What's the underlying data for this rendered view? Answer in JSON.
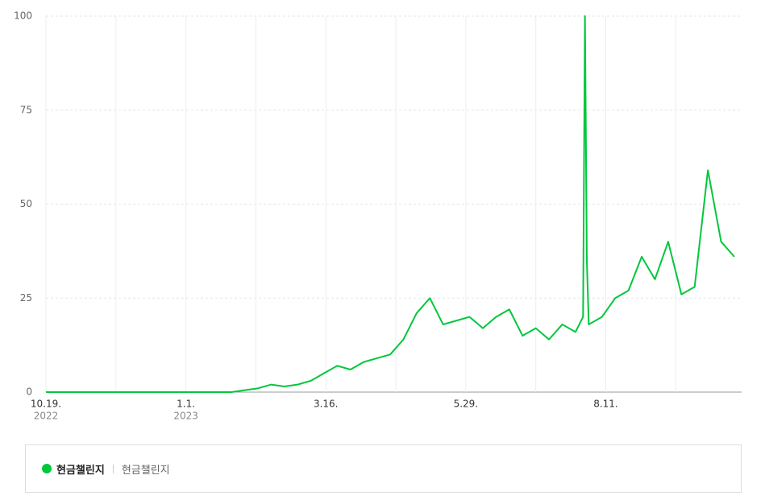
{
  "chart_data": {
    "type": "line",
    "x": [
      "2022-10-19",
      "2022-10-26",
      "2022-11-02",
      "2022-11-09",
      "2022-11-16",
      "2022-11-23",
      "2022-11-30",
      "2022-12-07",
      "2022-12-14",
      "2022-12-21",
      "2022-12-28",
      "2023-01-04",
      "2023-01-11",
      "2023-01-18",
      "2023-01-25",
      "2023-02-01",
      "2023-02-08",
      "2023-02-15",
      "2023-02-22",
      "2023-03-01",
      "2023-03-08",
      "2023-03-15",
      "2023-03-22",
      "2023-03-29",
      "2023-04-05",
      "2023-04-12",
      "2023-04-19",
      "2023-04-26",
      "2023-05-03",
      "2023-05-10",
      "2023-05-17",
      "2023-05-24",
      "2023-05-31",
      "2023-06-07",
      "2023-06-14",
      "2023-06-21",
      "2023-06-28",
      "2023-07-05",
      "2023-07-12",
      "2023-07-19",
      "2023-07-26",
      "2023-07-30",
      "2023-07-31",
      "2023-08-01",
      "2023-08-02",
      "2023-08-09",
      "2023-08-16",
      "2023-08-23",
      "2023-08-30",
      "2023-09-06",
      "2023-09-13",
      "2023-09-20",
      "2023-09-27",
      "2023-10-04",
      "2023-10-11",
      "2023-10-18"
    ],
    "series": [
      {
        "name": "현금챌린지",
        "color": "#00c73c",
        "values": [
          0,
          0,
          0,
          0,
          0,
          0,
          0,
          0,
          0,
          0,
          0,
          0,
          0,
          0,
          0,
          0.5,
          1,
          2,
          1.5,
          2,
          3,
          5,
          7,
          6,
          8,
          9,
          10,
          14,
          21,
          25,
          18,
          19,
          20,
          17,
          20,
          22,
          15,
          17,
          14,
          18,
          16,
          20,
          100,
          35,
          18,
          20,
          25,
          27,
          36,
          30,
          40,
          26,
          28,
          59,
          40,
          36
        ]
      }
    ],
    "legend_keyword": "현금챌린지",
    "xlim": [
      "2022-10-19",
      "2023-10-18"
    ],
    "xticks": [
      {
        "value": "2022-10-19",
        "label": "10.19.",
        "year": "2022"
      },
      {
        "value": "2022-11-25",
        "label": null
      },
      {
        "value": "2023-01-01",
        "label": "1.1.",
        "year": "2023"
      },
      {
        "value": "2023-02-07",
        "label": null
      },
      {
        "value": "2023-03-16",
        "label": "3.16."
      },
      {
        "value": "2023-04-22",
        "label": null
      },
      {
        "value": "2023-05-29",
        "label": "5.29."
      },
      {
        "value": "2023-07-05",
        "label": null
      },
      {
        "value": "2023-08-11",
        "label": "8.11."
      },
      {
        "value": "2023-09-17",
        "label": null
      }
    ],
    "ylim": [
      0,
      100
    ],
    "yticks": [
      0,
      25,
      50,
      75,
      100
    ],
    "grid": true
  }
}
